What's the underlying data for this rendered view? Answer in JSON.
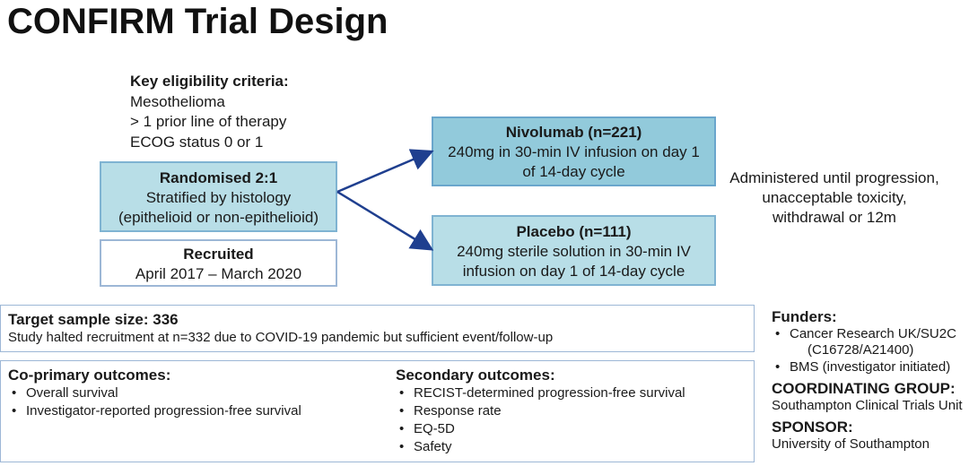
{
  "title": "CONFIRM Trial Design",
  "eligibility": {
    "heading": "Key eligibility criteria:",
    "items": [
      "Mesothelioma",
      "> 1 prior line of therapy",
      "ECOG status 0 or 1"
    ]
  },
  "randomised": {
    "title": "Randomised 2:1",
    "lines": [
      "Stratified by histology",
      "(epithelioid or non-epithelioid)"
    ]
  },
  "recruited": {
    "title": "Recruited",
    "period": "April 2017 – March 2020"
  },
  "nivolumab": {
    "title": "Nivolumab (n=221)",
    "lines": [
      "240mg in 30-min IV infusion on day 1",
      "of 14-day cycle"
    ]
  },
  "placebo": {
    "title": "Placebo (n=111)",
    "lines": [
      "240mg sterile solution in 30-min IV",
      "infusion on day 1 of 14-day cycle"
    ]
  },
  "administration": [
    "Administered until progression,",
    "unacceptable toxicity,",
    "withdrawal or 12m"
  ],
  "sample": {
    "title": "Target sample size: 336",
    "note": "Study halted recruitment at n=332 due to COVID-19 pandemic but sufficient event/follow-up"
  },
  "primary": {
    "title": "Co-primary outcomes:",
    "items": [
      "Overall survival",
      "Investigator-reported progression-free survival"
    ]
  },
  "secondary": {
    "title": "Secondary outcomes:",
    "items": [
      "RECIST-determined progression-free survival",
      "Response rate",
      "EQ-5D",
      "Safety"
    ]
  },
  "funders": {
    "title": "Funders:",
    "items": [
      "Cancer Research UK/SU2C",
      "BMS (investigator initiated)"
    ],
    "grant": "(C16728/A21400)"
  },
  "coordinating": {
    "title": "COORDINATING GROUP:",
    "value": "Southampton Clinical Trials Unit"
  },
  "sponsor": {
    "title": "SPONSOR:",
    "value": "University of Southampton"
  },
  "colors": {
    "arrow": "#1f3f8f",
    "light_box": "#b8dee7",
    "dark_box": "#92cadb",
    "border": "#9db7d6"
  }
}
